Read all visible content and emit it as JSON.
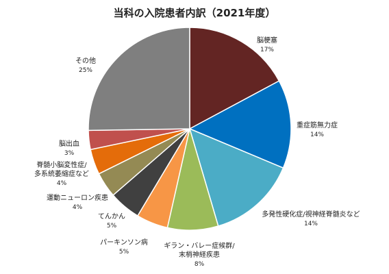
{
  "chart_data": {
    "type": "pie",
    "title": "当科の入院患者内訳（2021年度）",
    "start_angle_deg": 0,
    "direction": "clockwise",
    "slices": [
      {
        "label": [
          "脳梗塞"
        ],
        "value": 17,
        "pct_text": "17%",
        "color": "#632523"
      },
      {
        "label": [
          "重症筋無力症"
        ],
        "value": 14,
        "pct_text": "14%",
        "color": "#0070c0"
      },
      {
        "label": [
          "多発性硬化症/視神経脊髄炎など"
        ],
        "value": 14,
        "pct_text": "14%",
        "color": "#4bacc6"
      },
      {
        "label": [
          "ギラン・バレー症候群/",
          "末梢神経疾患"
        ],
        "value": 8,
        "pct_text": "8%",
        "color": "#9bbb59"
      },
      {
        "label": [
          "パーキンソン病"
        ],
        "value": 5,
        "pct_text": "5%",
        "color": "#f79646"
      },
      {
        "label": [
          "てんかん"
        ],
        "value": 5,
        "pct_text": "5%",
        "color": "#404040"
      },
      {
        "label": [
          "運動ニューロン疾患"
        ],
        "value": 4,
        "pct_text": "4%",
        "color": "#948a54"
      },
      {
        "label": [
          "脊髄小脳変性症/",
          "多系統萎縮症など"
        ],
        "value": 4,
        "pct_text": "4%",
        "color": "#e46c0a"
      },
      {
        "label": [
          "脳出血"
        ],
        "value": 3,
        "pct_text": "3%",
        "color": "#c0504d"
      },
      {
        "label": [
          "その他"
        ],
        "value": 25,
        "pct_text": "25%",
        "color": "#7f7f7f"
      }
    ]
  }
}
